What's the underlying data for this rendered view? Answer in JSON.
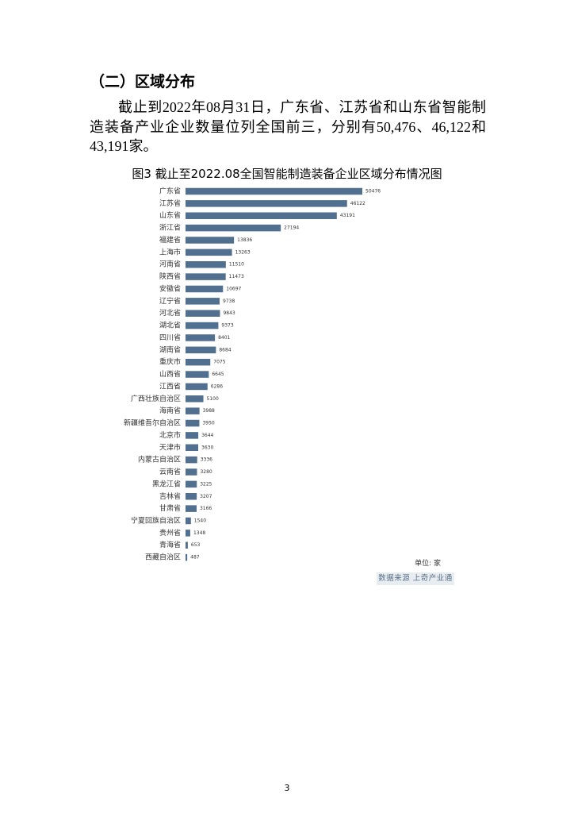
{
  "heading": "（二）区域分布",
  "paragraph": "截止到2022年08月31日，广东省、江苏省和山东省智能制造装备产业企业数量位列全国前三，分别有50,476、46,122和43,191家。",
  "chart_data": {
    "type": "bar",
    "orientation": "horizontal",
    "title": "图3 截止至2022.08全国智能制造装备企业区域分布情况图",
    "categories": [
      "广东省",
      "江苏省",
      "山东省",
      "浙江省",
      "福建省",
      "上海市",
      "河南省",
      "陕西省",
      "安徽省",
      "辽宁省",
      "河北省",
      "湖北省",
      "四川省",
      "湖南省",
      "重庆市",
      "山西省",
      "江西省",
      "广西壮族自治区",
      "海南省",
      "新疆维吾尔自治区",
      "北京市",
      "天津市",
      "内蒙古自治区",
      "云南省",
      "黑龙江省",
      "吉林省",
      "甘肃省",
      "宁夏回族自治区",
      "贵州省",
      "青海省",
      "西藏自治区"
    ],
    "values": [
      50476,
      46122,
      43191,
      27194,
      13836,
      13263,
      11510,
      11473,
      10697,
      9738,
      9843,
      9373,
      8401,
      8684,
      7075,
      6645,
      6286,
      5100,
      3988,
      3950,
      3644,
      3630,
      3336,
      3280,
      3225,
      3207,
      3166,
      1540,
      1348,
      653,
      487
    ],
    "color": "#51708f",
    "unit_note": "单位: 家",
    "source": "数据来源 上奇产业通"
  },
  "page_number": "3"
}
